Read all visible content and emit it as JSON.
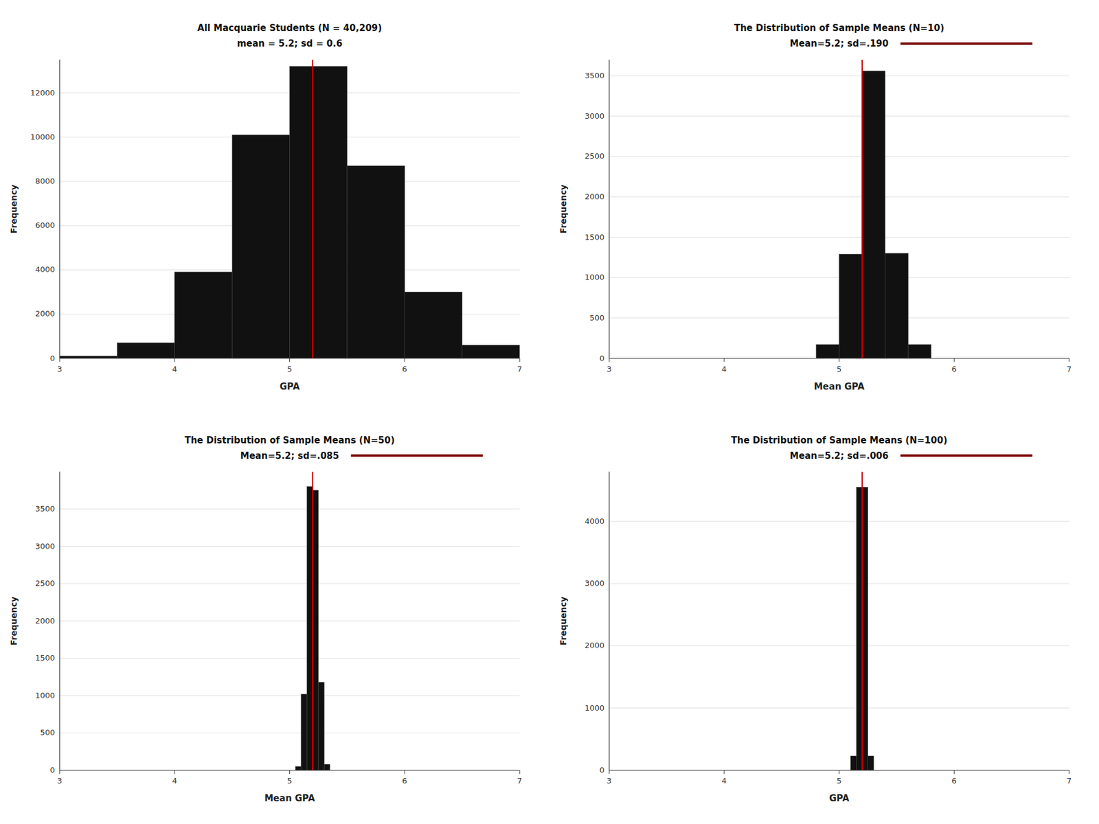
{
  "chart_data": [
    {
      "type": "histogram",
      "title": "All Macquarie Students (N = 40,209)",
      "subtitle": "mean = 5.2; sd = 0.6",
      "xlabel": "GPA",
      "ylabel": "Frequency",
      "xlim": [
        3,
        7
      ],
      "ylim": [
        0,
        13500
      ],
      "xticks": [
        3,
        4,
        5,
        6,
        7
      ],
      "yticks": [
        0,
        2000,
        4000,
        6000,
        8000,
        10000,
        12000
      ],
      "bins": [
        3.0,
        3.5,
        4.0,
        4.5,
        5.0,
        5.5,
        6.0,
        6.5,
        7.0
      ],
      "values": [
        100,
        700,
        3900,
        10100,
        13200,
        8700,
        3000,
        600
      ],
      "color": "#111111",
      "mean_line": {
        "x": 5.2,
        "color": "#cc0000"
      },
      "grid": true
    },
    {
      "type": "histogram",
      "title": "The Distribution of Sample Means (N=10)",
      "subtitle": "Mean=5.2; sd=.190",
      "xlabel": "Mean GPA",
      "ylabel": "Frequency",
      "xlim": [
        3,
        7
      ],
      "ylim": [
        0,
        3700
      ],
      "xticks": [
        3,
        4,
        5,
        6,
        7
      ],
      "yticks": [
        0,
        500,
        1000,
        1500,
        2000,
        2500,
        3000,
        3500
      ],
      "bins": [
        4.8,
        5.0,
        5.2,
        5.4,
        5.6,
        5.8
      ],
      "values": [
        170,
        1290,
        3560,
        1300,
        170
      ],
      "color": "#111111",
      "mean_line": {
        "x": 5.2,
        "color": "#cc0000"
      },
      "subtitle_line": {
        "color": "#7b0000"
      },
      "grid": true
    },
    {
      "type": "histogram",
      "title": "The Distribution of Sample Means (N=50)",
      "subtitle": "Mean=5.2; sd=.085",
      "xlabel": "Mean GPA",
      "ylabel": "Frequency",
      "xlim": [
        3,
        7
      ],
      "ylim": [
        0,
        4000
      ],
      "xticks": [
        3,
        4,
        5,
        6,
        7
      ],
      "yticks": [
        0,
        500,
        1000,
        1500,
        2000,
        2500,
        3000,
        3500
      ],
      "bins": [
        5.05,
        5.1,
        5.15,
        5.2,
        5.25,
        5.3,
        5.35
      ],
      "values": [
        50,
        1020,
        3800,
        3750,
        1180,
        80
      ],
      "color": "#111111",
      "mean_line": {
        "x": 5.2,
        "color": "#cc0000"
      },
      "subtitle_line": {
        "color": "#7b0000"
      },
      "grid": true
    },
    {
      "type": "histogram",
      "title": "The Distribution of Sample Means (N=100)",
      "subtitle": "Mean=5.2; sd=.006",
      "xlabel": "GPA",
      "ylabel": "Frequency",
      "xlim": [
        3,
        7
      ],
      "ylim": [
        0,
        4800
      ],
      "xticks": [
        3,
        4,
        5,
        6,
        7
      ],
      "yticks": [
        0,
        1000,
        2000,
        3000,
        4000
      ],
      "bins": [
        5.1,
        5.15,
        5.2,
        5.25,
        5.3
      ],
      "values": [
        230,
        4550,
        4550,
        230
      ],
      "color": "#111111",
      "mean_line": {
        "x": 5.2,
        "color": "#cc0000"
      },
      "subtitle_line": {
        "color": "#7b0000"
      },
      "grid": true
    }
  ]
}
